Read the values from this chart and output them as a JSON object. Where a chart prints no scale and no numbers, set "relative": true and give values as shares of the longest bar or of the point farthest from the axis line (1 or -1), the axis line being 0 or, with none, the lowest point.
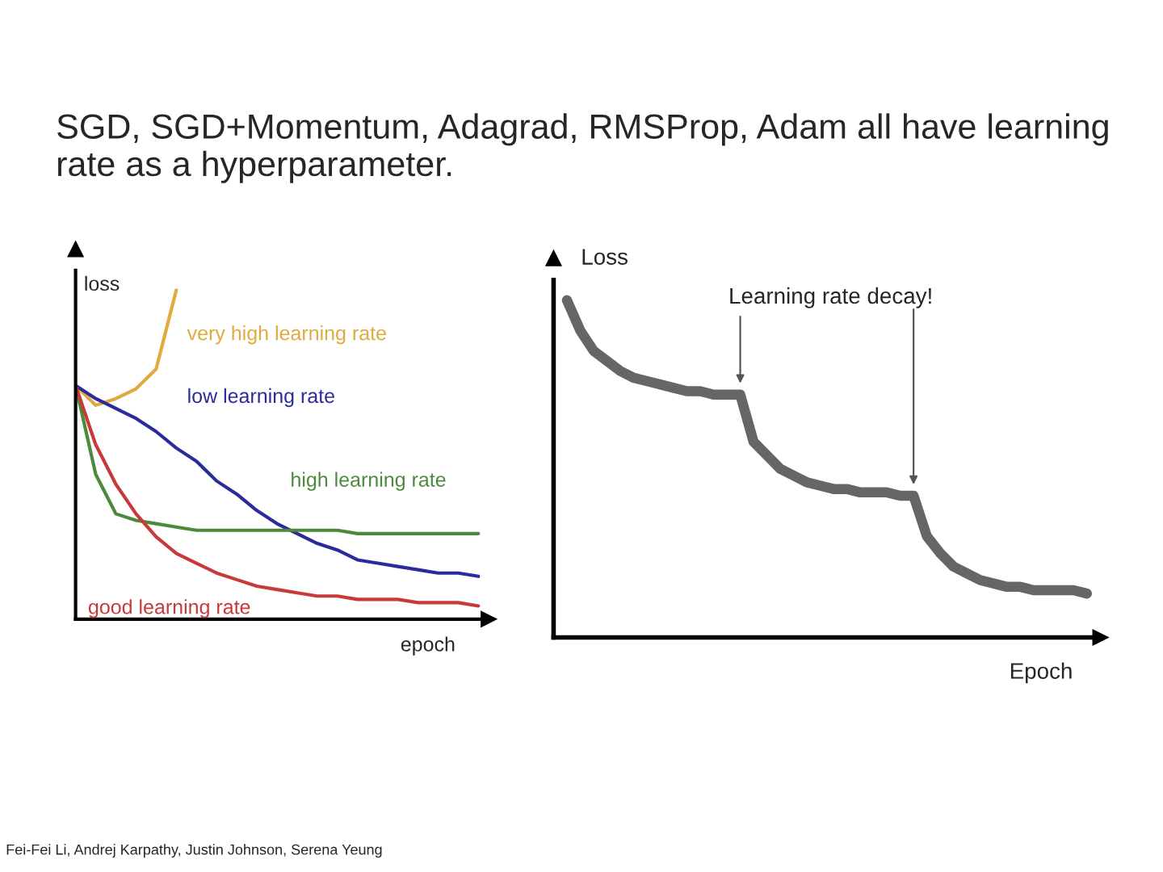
{
  "chart_data": [
    {
      "type": "line",
      "relative": true,
      "title": "SGD, SGD+Momentum, Adagrad, RMSProp, Adam all have learning rate as a hyperparameter.",
      "xlabel": "epoch",
      "ylabel": "loss",
      "legend": false,
      "grid": false,
      "marker": "none",
      "line_style": "solid",
      "annotations": [
        "Fei-Fei Li, Andrej Karpathy, Justin Johnson, Serena Yeung"
      ],
      "categories": [
        null,
        null,
        null,
        null,
        null,
        null,
        null,
        null,
        null,
        null,
        null,
        null,
        null,
        null,
        null,
        null,
        null,
        null,
        null,
        null,
        null
      ],
      "series": [
        {
          "name": "very high learning rate",
          "color": "#e0aa3e",
          "values": [
            0.71,
            0.65,
            0.67,
            0.7,
            0.76,
            1.0,
            null,
            null,
            null,
            null,
            null,
            null,
            null,
            null,
            null,
            null,
            null,
            null,
            null,
            null,
            null
          ]
        },
        {
          "name": "low learning rate",
          "color": "#2b2b9c",
          "values": [
            0.71,
            0.67,
            0.64,
            0.61,
            0.57,
            0.52,
            0.48,
            0.42,
            0.38,
            0.33,
            0.29,
            0.26,
            0.23,
            0.21,
            0.18,
            0.17,
            0.16,
            0.15,
            0.14,
            0.14,
            0.13
          ]
        },
        {
          "name": "high learning rate",
          "color": "#4a8a3a",
          "values": [
            0.71,
            0.44,
            0.32,
            0.3,
            0.29,
            0.28,
            0.27,
            0.27,
            0.27,
            0.27,
            0.27,
            0.27,
            0.27,
            0.27,
            0.26,
            0.26,
            0.26,
            0.26,
            0.26,
            0.26,
            0.26
          ]
        },
        {
          "name": "good learning rate",
          "color": "#c83a3a",
          "values": [
            0.71,
            0.53,
            0.41,
            0.32,
            0.25,
            0.2,
            0.17,
            0.14,
            0.12,
            0.1,
            0.09,
            0.08,
            0.07,
            0.07,
            0.06,
            0.06,
            0.06,
            0.05,
            0.05,
            0.05,
            0.04
          ]
        }
      ]
    },
    {
      "type": "line",
      "relative": true,
      "xlabel": "Epoch",
      "ylabel": "Loss",
      "legend": false,
      "grid": false,
      "marker": "none",
      "line_style": "solid",
      "annotations": [
        "Learning rate decay!"
      ],
      "categories": [
        null,
        null,
        null,
        null,
        null,
        null,
        null,
        null,
        null,
        null,
        null,
        null,
        null,
        null,
        null,
        null,
        null,
        null,
        null,
        null,
        null,
        null,
        null,
        null,
        null,
        null,
        null,
        null,
        null,
        null,
        null,
        null,
        null,
        null,
        null,
        null,
        null,
        null,
        null,
        null
      ],
      "series": [
        {
          "color": "#666666",
          "values": [
            1.0,
            0.91,
            0.85,
            0.82,
            0.79,
            0.77,
            0.76,
            0.75,
            0.74,
            0.73,
            0.73,
            0.72,
            0.72,
            0.72,
            0.58,
            0.54,
            0.5,
            0.48,
            0.46,
            0.45,
            0.44,
            0.44,
            0.43,
            0.43,
            0.43,
            0.42,
            0.42,
            0.3,
            0.25,
            0.21,
            0.19,
            0.17,
            0.16,
            0.15,
            0.15,
            0.14,
            0.14,
            0.14,
            0.14,
            0.13
          ]
        }
      ]
    }
  ]
}
